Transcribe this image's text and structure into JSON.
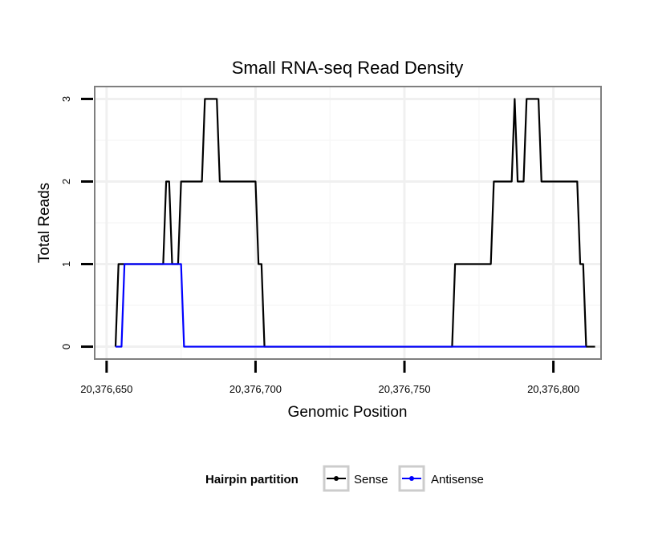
{
  "chart_data": {
    "type": "line",
    "title": "Small RNA-seq Read Density",
    "xlabel": "Genomic Position",
    "ylabel": "Total Reads",
    "xlim": [
      20376646,
      20376816
    ],
    "ylim": [
      -0.15,
      3.15
    ],
    "x_ticks": [
      20376650,
      20376700,
      20376750,
      20376800
    ],
    "x_tick_labels": [
      "20,376,650",
      "20,376,700",
      "20,376,750",
      "20,376,800"
    ],
    "y_ticks": [
      0,
      1,
      2,
      3
    ],
    "y_tick_labels": [
      "0",
      "1",
      "2",
      "3"
    ],
    "grid": true,
    "legend": {
      "title": "Hairpin partition",
      "position": "bottom"
    },
    "series": [
      {
        "name": "Sense",
        "color": "#000000",
        "points": [
          [
            20376653,
            0
          ],
          [
            20376654,
            1
          ],
          [
            20376669,
            1
          ],
          [
            20376670,
            2
          ],
          [
            20376671,
            2
          ],
          [
            20376672,
            1
          ],
          [
            20376674,
            1
          ],
          [
            20376675,
            2
          ],
          [
            20376682,
            2
          ],
          [
            20376683,
            3
          ],
          [
            20376687,
            3
          ],
          [
            20376688,
            2
          ],
          [
            20376700,
            2
          ],
          [
            20376701,
            1
          ],
          [
            20376702,
            1
          ],
          [
            20376703,
            0
          ],
          [
            20376766,
            0
          ],
          [
            20376767,
            1
          ],
          [
            20376779,
            1
          ],
          [
            20376780,
            2
          ],
          [
            20376786,
            2
          ],
          [
            20376787,
            3
          ],
          [
            20376788,
            2
          ],
          [
            20376790,
            2
          ],
          [
            20376791,
            3
          ],
          [
            20376795,
            3
          ],
          [
            20376796,
            2
          ],
          [
            20376808,
            2
          ],
          [
            20376809,
            1
          ],
          [
            20376810,
            1
          ],
          [
            20376811,
            0
          ],
          [
            20376814,
            0
          ]
        ]
      },
      {
        "name": "Antisense",
        "color": "#0000ff",
        "points": [
          [
            20376653,
            0
          ],
          [
            20376655,
            0
          ],
          [
            20376656,
            1
          ],
          [
            20376675,
            1
          ],
          [
            20376676,
            0
          ],
          [
            20376703,
            0
          ],
          [
            20376766,
            0
          ],
          [
            20376811,
            0
          ]
        ]
      }
    ]
  }
}
